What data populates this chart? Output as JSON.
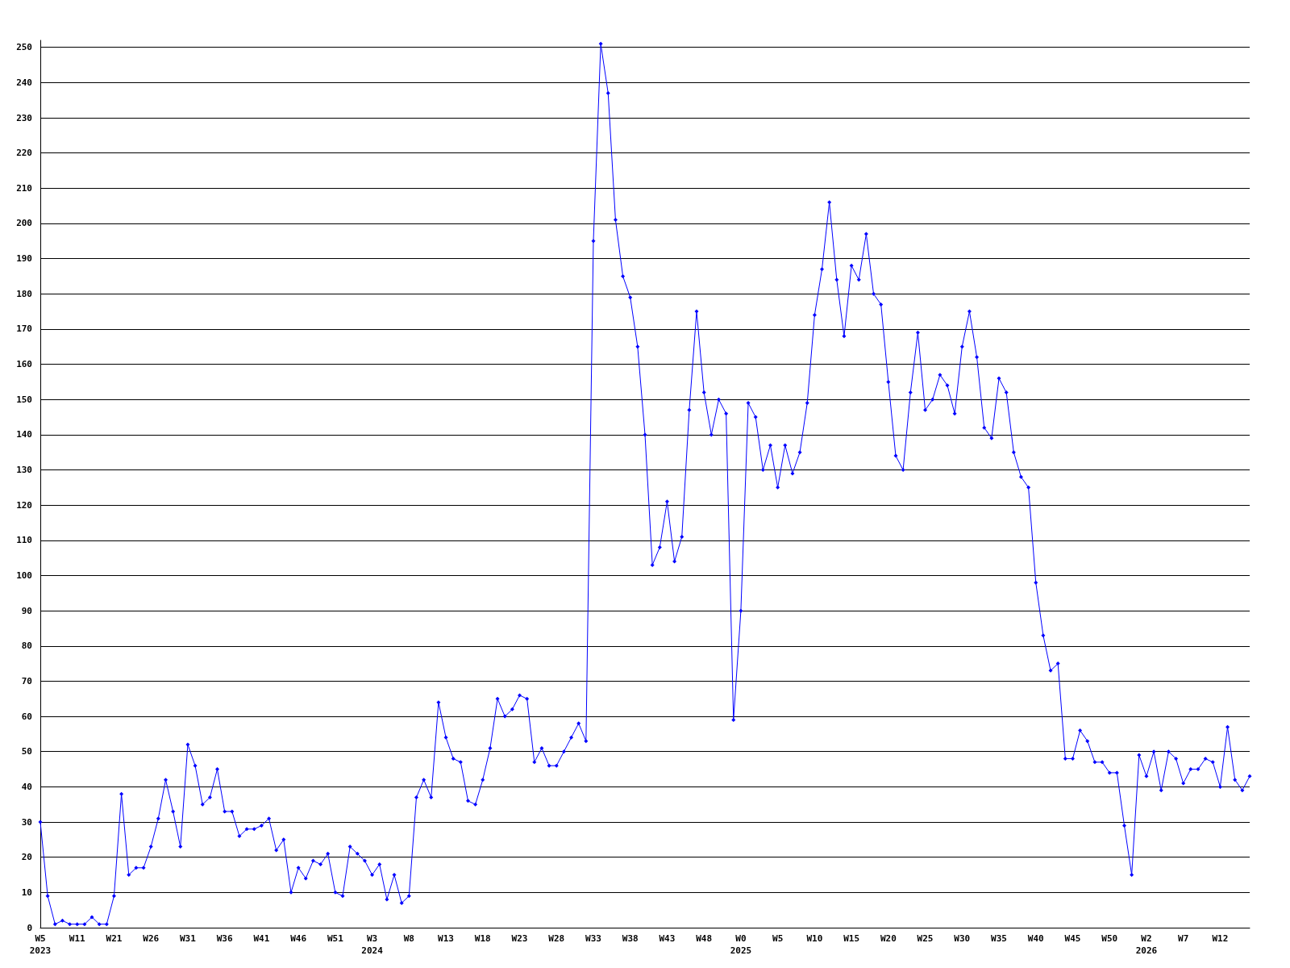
{
  "chart_data": {
    "type": "line",
    "categories": [
      "W5\n2023",
      null,
      null,
      null,
      null,
      "W11",
      null,
      null,
      null,
      null,
      "W21",
      null,
      null,
      null,
      null,
      "W26",
      null,
      null,
      null,
      null,
      "W31",
      null,
      null,
      null,
      null,
      "W36",
      null,
      null,
      null,
      null,
      "W41",
      null,
      null,
      null,
      null,
      "W46",
      null,
      null,
      null,
      null,
      "W51",
      null,
      null,
      null,
      null,
      "W3\n2024",
      null,
      null,
      null,
      null,
      "W8",
      null,
      null,
      null,
      null,
      "W13",
      null,
      null,
      null,
      null,
      "W18",
      null,
      null,
      null,
      null,
      "W23",
      null,
      null,
      null,
      null,
      "W28",
      null,
      null,
      null,
      null,
      "W33",
      null,
      null,
      null,
      null,
      "W38",
      null,
      null,
      null,
      null,
      "W43",
      null,
      null,
      null,
      null,
      "W48",
      null,
      null,
      null,
      null,
      "W0\n2025",
      null,
      null,
      null,
      null,
      "W5",
      null,
      null,
      null,
      null,
      "W10",
      null,
      null,
      null,
      null,
      "W15",
      null,
      null,
      null,
      null,
      "W20",
      null,
      null,
      null,
      null,
      "W25",
      null,
      null,
      null,
      null,
      "W30",
      null,
      null,
      null,
      null,
      "W35",
      null,
      null,
      null,
      null,
      "W40",
      null,
      null,
      null,
      null,
      "W45",
      null,
      null,
      null,
      null,
      "W50",
      null,
      null,
      null,
      null,
      "W2\n2026",
      null,
      null,
      null,
      null,
      "W7",
      null,
      null,
      null,
      null,
      "W12",
      null,
      null,
      null,
      null
    ],
    "series": [
      {
        "color": "#0000ff",
        "values": [
          30,
          9,
          1,
          2,
          1,
          1,
          1,
          3,
          1,
          1,
          9,
          38,
          15,
          17,
          17,
          23,
          31,
          42,
          33,
          23,
          52,
          46,
          35,
          37,
          45,
          33,
          33,
          26,
          28,
          28,
          29,
          31,
          22,
          25,
          10,
          17,
          14,
          19,
          18,
          21,
          10,
          9,
          23,
          21,
          19,
          15,
          18,
          8,
          15,
          7,
          9,
          37,
          42,
          37,
          64,
          54,
          48,
          47,
          36,
          35,
          42,
          51,
          65,
          60,
          62,
          66,
          65,
          47,
          51,
          46,
          46,
          50,
          54,
          58,
          53,
          195,
          251,
          237,
          201,
          185,
          179,
          165,
          140,
          103,
          108,
          121,
          104,
          111,
          147,
          175,
          152,
          140,
          150,
          146,
          59,
          90,
          149,
          145,
          130,
          137,
          125,
          137,
          129,
          135,
          149,
          174,
          187,
          206,
          184,
          168,
          188,
          184,
          197,
          180,
          177,
          155,
          134,
          130,
          152,
          169,
          147,
          150,
          157,
          154,
          146,
          165,
          175,
          162,
          142,
          139,
          156,
          152,
          135,
          128,
          125,
          98,
          83,
          73,
          75,
          48,
          48,
          56,
          53,
          47,
          47,
          44,
          44,
          29,
          15,
          49,
          43,
          50,
          39,
          50,
          48,
          41,
          45,
          45,
          48,
          47,
          40,
          57,
          42,
          39,
          43
        ]
      }
    ],
    "ylim": [
      0,
      252
    ],
    "yticks": [
      0,
      10,
      20,
      30,
      40,
      50,
      60,
      70,
      80,
      90,
      100,
      110,
      120,
      130,
      140,
      150,
      160,
      170,
      180,
      190,
      200,
      210,
      220,
      230,
      240,
      250
    ],
    "grid": "y",
    "marker": "diamond",
    "line_style": "solid"
  }
}
